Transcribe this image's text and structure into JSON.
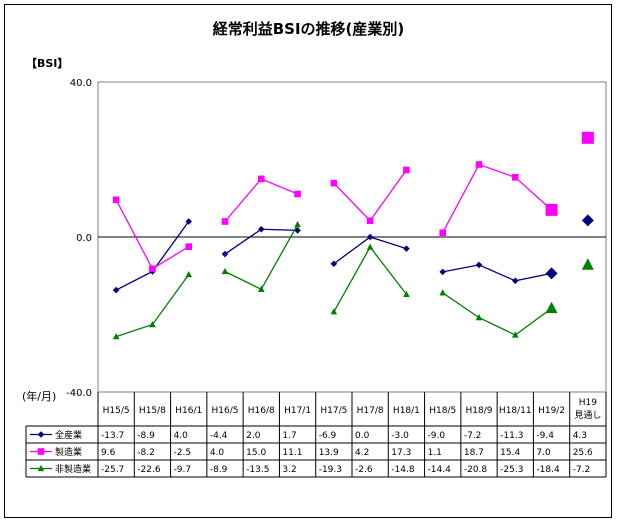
{
  "chart_data": {
    "type": "line",
    "title": "経常利益BSIの推移(産業別)",
    "ylabel": "【BSI】",
    "xlabel": "(年/月)",
    "ylim": [
      -40,
      40
    ],
    "yticks": [
      "40.0",
      "0.0",
      "-40.0"
    ],
    "categories": [
      "H15/5",
      "H15/8",
      "H16/1",
      "H16/5",
      "H16/8",
      "H17/1",
      "H17/5",
      "H17/8",
      "H18/1",
      "H18/5",
      "H18/9",
      "H18/11",
      "H19/2",
      "H19 見通し"
    ],
    "segments": [
      [
        0,
        2
      ],
      [
        3,
        5
      ],
      [
        6,
        8
      ],
      [
        9,
        12
      ]
    ],
    "forecast_index": 13,
    "series": [
      {
        "name": "全産業",
        "color": "#000080",
        "marker": "diamond",
        "values": [
          -13.7,
          -8.9,
          4.0,
          -4.4,
          2.0,
          1.7,
          -6.9,
          0.0,
          -3.0,
          -9.0,
          -7.2,
          -11.3,
          -9.4,
          4.3
        ],
        "labels": [
          "-13.7",
          "-8.9",
          "4.0",
          "-4.4",
          "2.0",
          "1.7",
          "-6.9",
          "0.0",
          "-3.0",
          "-9.0",
          "-7.2",
          "-11.3",
          "-9.4",
          "4.3"
        ]
      },
      {
        "name": "製造業",
        "color": "#ff00ff",
        "marker": "square",
        "values": [
          9.6,
          -8.2,
          -2.5,
          4.0,
          15.0,
          11.1,
          13.9,
          4.2,
          17.3,
          1.1,
          18.7,
          15.4,
          7.0,
          25.6
        ],
        "labels": [
          "9.6",
          "-8.2",
          "-2.5",
          "4.0",
          "15.0",
          "11.1",
          "13.9",
          "4.2",
          "17.3",
          "1.1",
          "18.7",
          "15.4",
          "7.0",
          "25.6"
        ]
      },
      {
        "name": "非製造業",
        "color": "#008000",
        "marker": "triangle",
        "values": [
          -25.7,
          -22.6,
          -9.7,
          -8.9,
          -13.5,
          3.2,
          -19.3,
          -2.6,
          -14.8,
          -14.4,
          -20.8,
          -25.3,
          -18.4,
          -7.2
        ],
        "labels": [
          "-25.7",
          "-22.6",
          "-9.7",
          "-8.9",
          "-13.5",
          "3.2",
          "-19.3",
          "-2.6",
          "-14.8",
          "-14.4",
          "-20.8",
          "-25.3",
          "-18.4",
          "-7.2"
        ]
      }
    ]
  }
}
